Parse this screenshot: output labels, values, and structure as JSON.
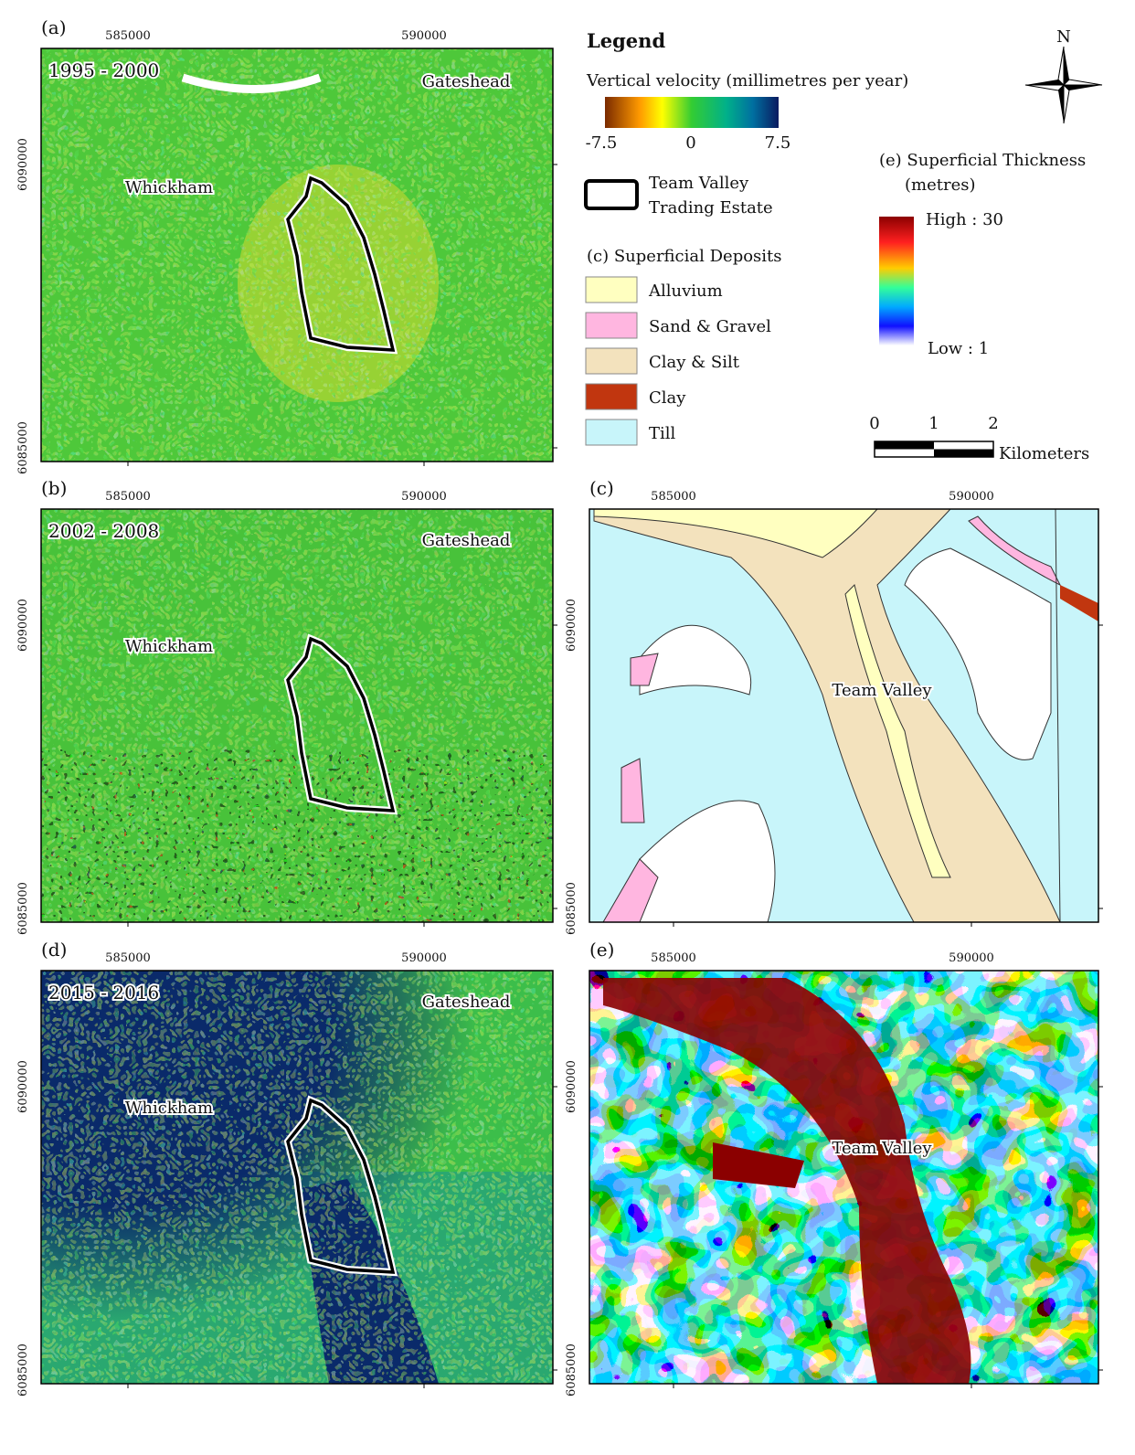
{
  "panels": [
    {
      "label": "(a)",
      "period": "1995 - 2000",
      "x_ticks": [
        "585000",
        "590000"
      ],
      "y_ticks": [
        "6090000",
        "6085000"
      ],
      "places": [
        "Gateshead",
        "Whickham"
      ]
    },
    {
      "label": "(b)",
      "period": "2002 - 2008",
      "x_ticks": [
        "585000",
        "590000"
      ],
      "y_ticks": [
        "6090000",
        "6085000"
      ],
      "places": [
        "Gateshead",
        "Whickham"
      ]
    },
    {
      "label": "(c)",
      "x_ticks": [
        "585000",
        "590000"
      ],
      "y_ticks": [
        "6090000",
        "6085000"
      ],
      "places": [
        "Team Valley"
      ]
    },
    {
      "label": "(d)",
      "period": "2015 - 2016",
      "x_ticks": [
        "585000",
        "590000"
      ],
      "y_ticks": [
        "6090000",
        "6085000"
      ],
      "places": [
        "Gateshead",
        "Whickham"
      ]
    },
    {
      "label": "(e)",
      "x_ticks": [
        "585000",
        "590000"
      ],
      "y_ticks": [
        "6090000",
        "6085000"
      ],
      "places": [
        "Team Valley"
      ]
    }
  ],
  "legend": {
    "title": "Legend",
    "velocity_title": "Vertical velocity (millimetres per year)",
    "velocity_ticks": [
      "-7.5",
      "0",
      "7.5"
    ],
    "outline_label": [
      "Team Valley",
      "Trading Estate"
    ],
    "deposits_title": "(c) Superficial Deposits",
    "deposits": [
      "Alluvium",
      "Sand & Gravel",
      "Clay & Silt",
      "Clay",
      "Till"
    ],
    "thickness_title": [
      "(e) Superficial Thickness",
      "(metres)"
    ],
    "thickness_high": "High : 30",
    "thickness_low": "Low : 1",
    "scale_ticks": [
      "0",
      "1",
      "2"
    ],
    "scale_unit": "Kilometers",
    "north": "N"
  }
}
